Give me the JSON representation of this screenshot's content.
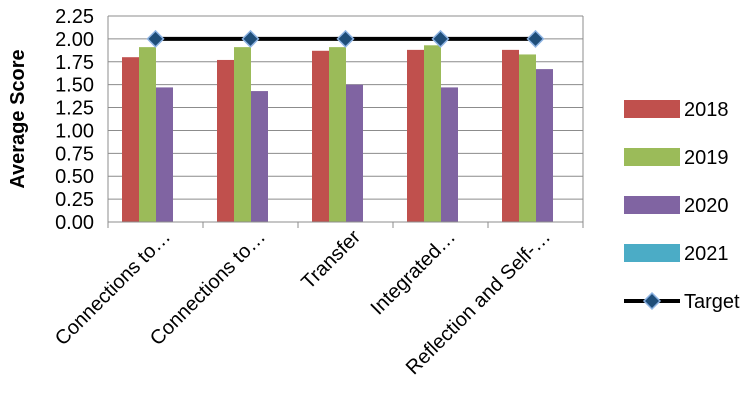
{
  "chart_data": {
    "type": "bar",
    "title": "",
    "xlabel": "",
    "ylabel": "Average Score",
    "ylim": [
      0,
      2.25
    ],
    "yticks": [
      "0.00",
      "0.25",
      "0.50",
      "0.75",
      "1.00",
      "1.25",
      "1.50",
      "1.75",
      "2.00",
      "2.25"
    ],
    "categories": [
      "Connections to…",
      "Connections to…",
      "Transfer",
      "Integrated…",
      "Reflection and Self-…"
    ],
    "series": [
      {
        "name": "2018",
        "color": "#c0504d",
        "values": [
          1.8,
          1.77,
          1.87,
          1.88,
          1.88
        ]
      },
      {
        "name": "2019",
        "color": "#9bbb59",
        "values": [
          1.91,
          1.91,
          1.91,
          1.93,
          1.83
        ]
      },
      {
        "name": "2020",
        "color": "#8064a2",
        "values": [
          1.47,
          1.43,
          1.5,
          1.47,
          1.67
        ]
      },
      {
        "name": "2021",
        "color": "#4bacc6",
        "values": [
          0,
          0,
          0,
          0,
          0
        ]
      }
    ],
    "target": {
      "name": "Target",
      "color": "#000000",
      "marker_color": "#1f4e79",
      "values": [
        2.0,
        2.0,
        2.0,
        2.0,
        2.0
      ]
    },
    "grid": true,
    "legend_position": "right"
  }
}
